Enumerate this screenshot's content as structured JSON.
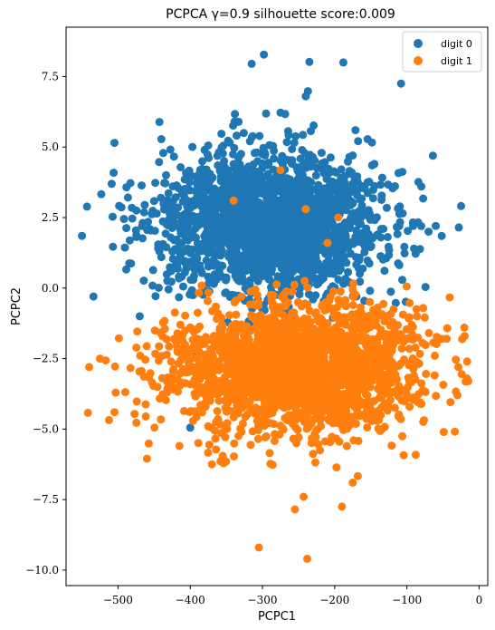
{
  "chart_data": {
    "type": "scatter",
    "title": "PCPCA γ=0.9 silhouette score:0.009",
    "xlabel": "PCPC1",
    "ylabel": "PCPC2",
    "xlim": [
      -572,
      12
    ],
    "ylim": [
      -10.55,
      9.25
    ],
    "xticks": [
      -500,
      -400,
      -300,
      -200,
      -100,
      0
    ],
    "yticks": [
      -10.0,
      -7.5,
      -5.0,
      -2.5,
      0.0,
      2.5,
      5.0,
      7.5
    ],
    "xtick_labels": [
      "−500",
      "−400",
      "−300",
      "−200",
      "−100",
      "0"
    ],
    "ytick_labels": [
      "−10.0",
      "−7.5",
      "−5.0",
      "−2.5",
      "0.0",
      "2.5",
      "5.0",
      "7.5"
    ],
    "legend_position": "top-right",
    "grid": false,
    "series": [
      {
        "name": "digit 0",
        "color": "#1f77b4",
        "center": [
          -290,
          2.3
        ],
        "spread": [
          75,
          1.25
        ],
        "count": 2200,
        "points": [
          [
            -315,
            7.95
          ],
          [
            -298,
            8.28
          ],
          [
            -235,
            8.02
          ],
          [
            -188,
            8.0
          ],
          [
            -108,
            7.25
          ],
          [
            -237,
            6.98
          ],
          [
            -240,
            6.8
          ],
          [
            -275,
            6.22
          ],
          [
            -505,
            5.15
          ],
          [
            -440,
            5.28
          ],
          [
            -550,
            1.85
          ],
          [
            -534,
            -0.3
          ],
          [
            -430,
            -0.05
          ],
          [
            -470,
            -1.0
          ],
          [
            -355,
            -6.0
          ],
          [
            -400,
            -4.95
          ],
          [
            -145,
            4.4
          ],
          [
            -80,
            3.6
          ],
          [
            -70,
            2.0
          ],
          [
            -60,
            2.2
          ],
          [
            -440,
            1.1
          ],
          [
            -290,
            0.3
          ],
          [
            -230,
            -0.4
          ],
          [
            -170,
            -0.3
          ],
          [
            -350,
            3.9
          ]
        ]
      },
      {
        "name": "digit 1",
        "color": "#ff7f0e",
        "center": [
          -255,
          -2.8
        ],
        "spread": [
          85,
          1.1
        ],
        "count": 2200,
        "points": [
          [
            -305,
            -9.2
          ],
          [
            -238,
            -9.6
          ],
          [
            -255,
            -7.85
          ],
          [
            -243,
            -7.4
          ],
          [
            -190,
            -7.75
          ],
          [
            -355,
            -5.95
          ],
          [
            -370,
            -6.25
          ],
          [
            -415,
            -5.6
          ],
          [
            -290,
            -5.85
          ],
          [
            -175,
            -6.9
          ],
          [
            -20,
            -1.7
          ],
          [
            -15,
            -3.3
          ],
          [
            -540,
            -2.8
          ],
          [
            -525,
            -2.5
          ],
          [
            -505,
            -4.4
          ],
          [
            -275,
            4.18
          ],
          [
            -240,
            2.8
          ],
          [
            -195,
            2.5
          ],
          [
            -210,
            1.6
          ],
          [
            -340,
            3.1
          ],
          [
            -460,
            -6.05
          ],
          [
            -145,
            -4.0
          ],
          [
            -30,
            -3.8
          ],
          [
            -120,
            -1.2
          ],
          [
            -400,
            -1.4
          ]
        ]
      }
    ]
  }
}
